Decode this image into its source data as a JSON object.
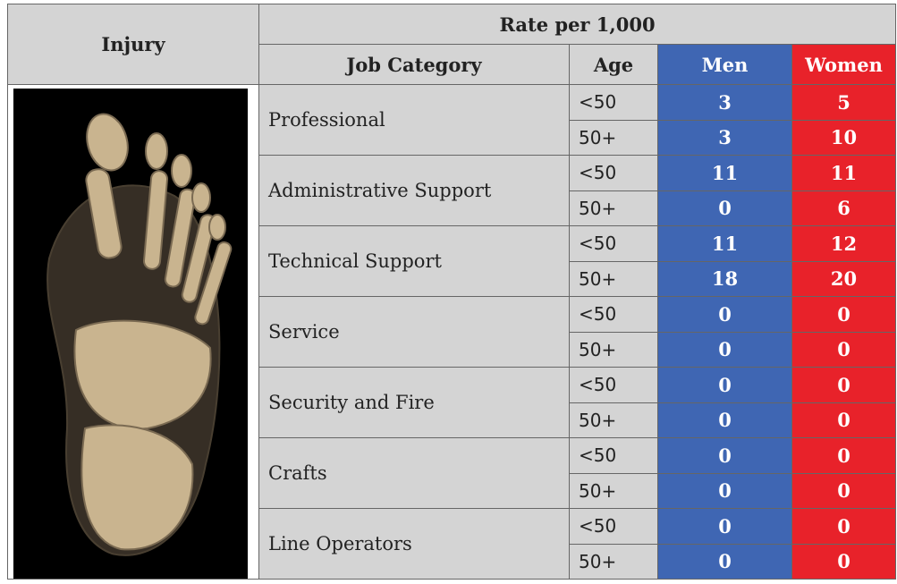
{
  "header": {
    "injury": "Injury",
    "rate": "Rate per 1,000",
    "job_category": "Job Category",
    "age": "Age",
    "men": "Men",
    "women": "Women"
  },
  "table": {
    "rows": [
      {
        "category": "Professional",
        "ages": [
          {
            "age": "<50",
            "men": 3,
            "women": 5
          },
          {
            "age": "50+",
            "men": 3,
            "women": 10
          }
        ]
      },
      {
        "category": "Administrative Support",
        "ages": [
          {
            "age": "<50",
            "men": 11,
            "women": 11
          },
          {
            "age": "50+",
            "men": 0,
            "women": 6
          }
        ]
      },
      {
        "category": "Technical Support",
        "ages": [
          {
            "age": "<50",
            "men": 11,
            "women": 12
          },
          {
            "age": "50+",
            "men": 18,
            "women": 20
          }
        ]
      },
      {
        "category": "Service",
        "ages": [
          {
            "age": "<50",
            "men": 0,
            "women": 0
          },
          {
            "age": "50+",
            "men": 0,
            "women": 0
          }
        ]
      },
      {
        "category": "Security and Fire",
        "ages": [
          {
            "age": "<50",
            "men": 0,
            "women": 0
          },
          {
            "age": "50+",
            "men": 0,
            "women": 0
          }
        ]
      },
      {
        "category": "Crafts",
        "ages": [
          {
            "age": "<50",
            "men": 0,
            "women": 0
          },
          {
            "age": "50+",
            "men": 0,
            "women": 0
          }
        ]
      },
      {
        "category": "Line Operators",
        "ages": [
          {
            "age": "<50",
            "men": 0,
            "women": 0
          },
          {
            "age": "50+",
            "men": 0,
            "women": 0
          }
        ]
      }
    ]
  }
}
